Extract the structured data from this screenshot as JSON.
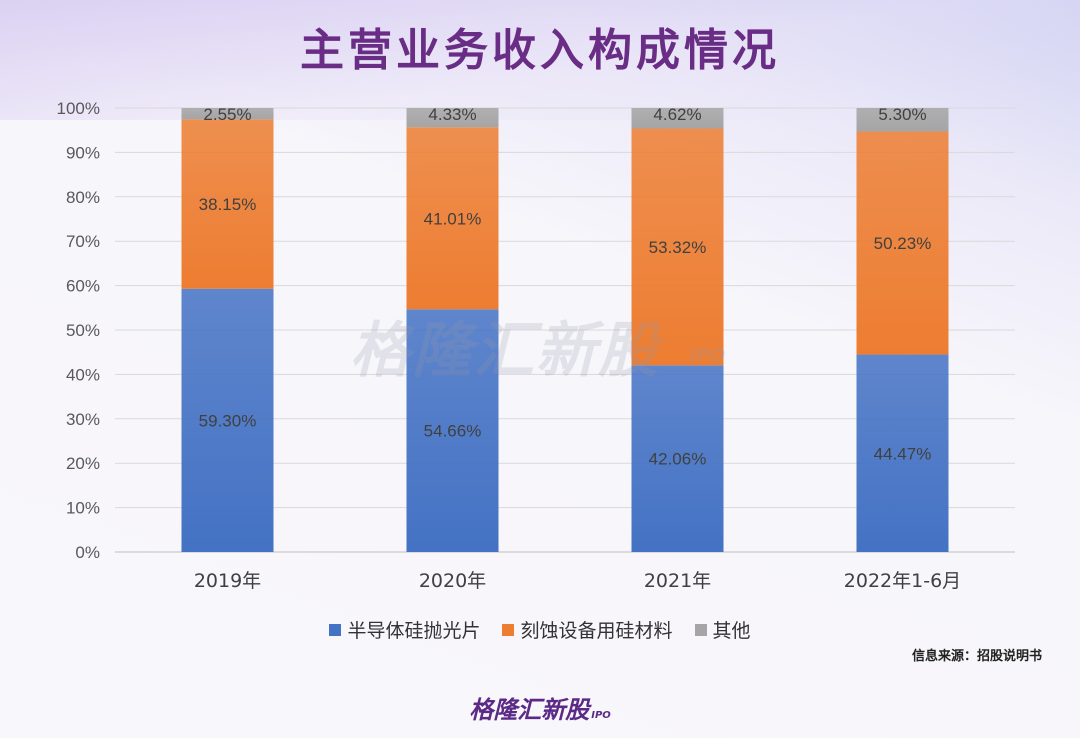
{
  "header": {
    "title": "主营业务收入构成情况"
  },
  "chart_data": {
    "type": "bar",
    "stacked": true,
    "categories": [
      "2019年",
      "2020年",
      "2021年",
      "2022年1-6月"
    ],
    "series": [
      {
        "name": "半导体硅抛光片",
        "values": [
          59.3,
          54.66,
          42.06,
          44.47
        ],
        "labels": [
          "59.30%",
          "54.66%",
          "42.06%",
          "44.47%"
        ],
        "color": "#4472c4"
      },
      {
        "name": "刻蚀设备用硅材料",
        "values": [
          38.15,
          41.01,
          53.32,
          50.23
        ],
        "labels": [
          "38.15%",
          "41.01%",
          "53.32%",
          "50.23%"
        ],
        "color": "#ed7d31"
      },
      {
        "name": "其他",
        "values": [
          2.55,
          4.33,
          4.62,
          5.3
        ],
        "labels": [
          "2.55%",
          "4.33%",
          "4.62%",
          "5.30%"
        ],
        "color": "#a5a5a5"
      }
    ],
    "yticks": [
      "0%",
      "10%",
      "20%",
      "30%",
      "40%",
      "50%",
      "60%",
      "70%",
      "80%",
      "90%",
      "100%"
    ],
    "ylim": [
      0,
      100
    ],
    "grid": true,
    "legend_position": "bottom"
  },
  "source_note": "信息来源：招股说明书",
  "watermark": {
    "text": "格隆汇新股",
    "sub": "IPO"
  },
  "footer_logo": {
    "text": "格隆汇新股",
    "sub": "IPO"
  }
}
